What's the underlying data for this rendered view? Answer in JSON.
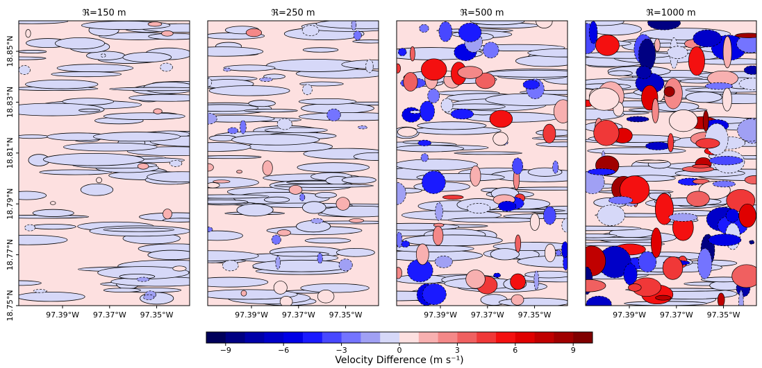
{
  "chart_data": [
    {
      "type": "contour",
      "title": "ℜ=150 m",
      "xlim": [
        -97.4086,
        -97.336
      ],
      "ylim": [
        18.75,
        18.862
      ],
      "xticks": [
        {
          "value": -97.39,
          "label": "97.39°W"
        },
        {
          "value": -97.37,
          "label": "97.37°W"
        },
        {
          "value": -97.35,
          "label": "97.35°W"
        }
      ],
      "yticks": [
        {
          "value": 18.75,
          "label": "18.75°N"
        },
        {
          "value": 18.77,
          "label": "18.77°N"
        },
        {
          "value": 18.79,
          "label": "18.79°N"
        },
        {
          "value": 18.81,
          "label": "18.81°N"
        },
        {
          "value": 18.83,
          "label": "18.83°N"
        },
        {
          "value": 18.85,
          "label": "18.85°N"
        }
      ]
    },
    {
      "type": "contour",
      "title": "ℜ=250 m",
      "xlim": [
        -97.4086,
        -97.336
      ],
      "ylim": [
        18.75,
        18.862
      ],
      "xticks": [
        {
          "value": -97.39,
          "label": "97.39°W"
        },
        {
          "value": -97.37,
          "label": "97.37°W"
        },
        {
          "value": -97.35,
          "label": "97.35°W"
        }
      ]
    },
    {
      "type": "contour",
      "title": "ℜ=500 m",
      "xlim": [
        -97.4086,
        -97.336
      ],
      "ylim": [
        18.75,
        18.862
      ],
      "xticks": [
        {
          "value": -97.39,
          "label": "97.39°W"
        },
        {
          "value": -97.37,
          "label": "97.37°W"
        },
        {
          "value": -97.35,
          "label": "97.35°W"
        }
      ]
    },
    {
      "type": "contour",
      "title": "ℜ=1000 m",
      "xlim": [
        -97.4086,
        -97.336
      ],
      "ylim": [
        18.75,
        18.862
      ],
      "xticks": [
        {
          "value": -97.39,
          "label": "97.39°W"
        },
        {
          "value": -97.37,
          "label": "97.37°W"
        },
        {
          "value": -97.35,
          "label": "97.35°W"
        }
      ]
    }
  ],
  "colorbar": {
    "label": "Velocity Difference (m s⁻¹)",
    "lim": [
      -10,
      10
    ],
    "ticks": [
      {
        "value": -9,
        "label": "−9"
      },
      {
        "value": -6,
        "label": "−6"
      },
      {
        "value": -3,
        "label": "−3"
      },
      0,
      3,
      6,
      9
    ],
    "colors": [
      "#00005a",
      "#000082",
      "#0000a8",
      "#0000c8",
      "#0000e6",
      "#1a1aff",
      "#4848ff",
      "#7474ff",
      "#a0a0f4",
      "#d6d8f8",
      "#fde0e0",
      "#f8b0b0",
      "#f48888",
      "#f06060",
      "#f03838",
      "#f41010",
      "#e00000",
      "#c00000",
      "#a00000",
      "#800000"
    ]
  }
}
